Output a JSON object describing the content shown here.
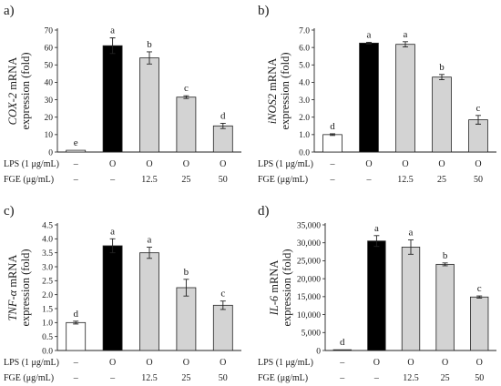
{
  "bar_colors": {
    "control": "#ffffff",
    "lps": "#000000",
    "fge": "#d3d3d3"
  },
  "chart_data": [
    {
      "type": "bar",
      "panel_label": "a)",
      "ylabel": {
        "italic": "COX-2",
        "rest": " mRNA",
        "line2": "expression (fold)"
      },
      "ylim": [
        0,
        70
      ],
      "yticks": [
        0,
        10,
        20,
        30,
        40,
        50,
        60,
        70
      ],
      "ytick_labels": [
        "0",
        "10",
        "20",
        "30",
        "40",
        "50",
        "60",
        "70"
      ],
      "values": [
        1,
        61,
        54,
        31.5,
        15
      ],
      "errors": [
        0,
        4.5,
        3.5,
        0.8,
        1.5
      ],
      "letters": [
        "e",
        "a",
        "b",
        "c",
        "d"
      ],
      "rows": [
        {
          "label": "LPS (1 μg/mL)",
          "cells": [
            "–",
            "O",
            "O",
            "O",
            "O"
          ]
        },
        {
          "label": "FGE (μg/mL)",
          "cells": [
            "–",
            "–",
            "12.5",
            "25",
            "50"
          ]
        }
      ]
    },
    {
      "type": "bar",
      "panel_label": "b)",
      "ylabel": {
        "italic": "iNOS2",
        "rest": " mRNA",
        "line2": "expression (fold)"
      },
      "ylim": [
        0,
        7
      ],
      "yticks": [
        0,
        1,
        2,
        3,
        4,
        5,
        6,
        7
      ],
      "ytick_labels": [
        "0.0",
        "1.0",
        "2.0",
        "3.0",
        "4.0",
        "5.0",
        "6.0",
        "7.0"
      ],
      "values": [
        1.0,
        6.25,
        6.18,
        4.3,
        1.85
      ],
      "errors": [
        0.05,
        0.05,
        0.15,
        0.15,
        0.25
      ],
      "letters": [
        "d",
        "a",
        "a",
        "b",
        "c"
      ],
      "rows": [
        {
          "label": "LPS (1 μg/mL)",
          "cells": [
            "–",
            "O",
            "O",
            "O",
            "O"
          ]
        },
        {
          "label": "FGE (μg/mL)",
          "cells": [
            "–",
            "–",
            "12.5",
            "25",
            "50"
          ]
        }
      ]
    },
    {
      "type": "bar",
      "panel_label": "c)",
      "ylabel": {
        "italic": "TNF-α",
        "rest": " mRNA",
        "line2": "expression (fold)"
      },
      "ylim": [
        0,
        4.5
      ],
      "yticks": [
        0,
        0.5,
        1,
        1.5,
        2,
        2.5,
        3,
        3.5,
        4,
        4.5
      ],
      "ytick_labels": [
        "0.0",
        "0.5",
        "1.0",
        "1.5",
        "2.0",
        "2.5",
        "3.0",
        "3.5",
        "4.0",
        "4.5"
      ],
      "values": [
        1.0,
        3.75,
        3.5,
        2.25,
        1.62
      ],
      "errors": [
        0.05,
        0.25,
        0.2,
        0.3,
        0.15
      ],
      "letters": [
        "d",
        "a",
        "a",
        "b",
        "c"
      ],
      "rows": [
        {
          "label": "LPS (1 μg/mL)",
          "cells": [
            "–",
            "O",
            "O",
            "O",
            "O"
          ]
        },
        {
          "label": "FGE (μg/mL)",
          "cells": [
            "–",
            "–",
            "12.5",
            "25",
            "50"
          ]
        }
      ]
    },
    {
      "type": "bar",
      "panel_label": "d)",
      "ylabel": {
        "italic": "IL-6",
        "rest": " mRNA",
        "line2": "expression (fold)"
      },
      "ylim": [
        0,
        35000
      ],
      "yticks": [
        0,
        5000,
        10000,
        15000,
        20000,
        25000,
        30000,
        35000
      ],
      "ytick_labels": [
        "0",
        "5,000",
        "10,000",
        "15,000",
        "20,000",
        "25,000",
        "30,000",
        "35,000"
      ],
      "values": [
        1,
        30500,
        28800,
        24000,
        14900
      ],
      "errors": [
        0,
        1500,
        2000,
        400,
        300
      ],
      "letters": [
        "d",
        "a",
        "a",
        "b",
        "c"
      ],
      "rows": [
        {
          "label": "LPS (1 μg/mL)",
          "cells": [
            "–",
            "O",
            "O",
            "O",
            "O"
          ]
        },
        {
          "label": "FGE (μg/mL)",
          "cells": [
            "–",
            "–",
            "12.5",
            "25",
            "50"
          ]
        }
      ]
    }
  ]
}
